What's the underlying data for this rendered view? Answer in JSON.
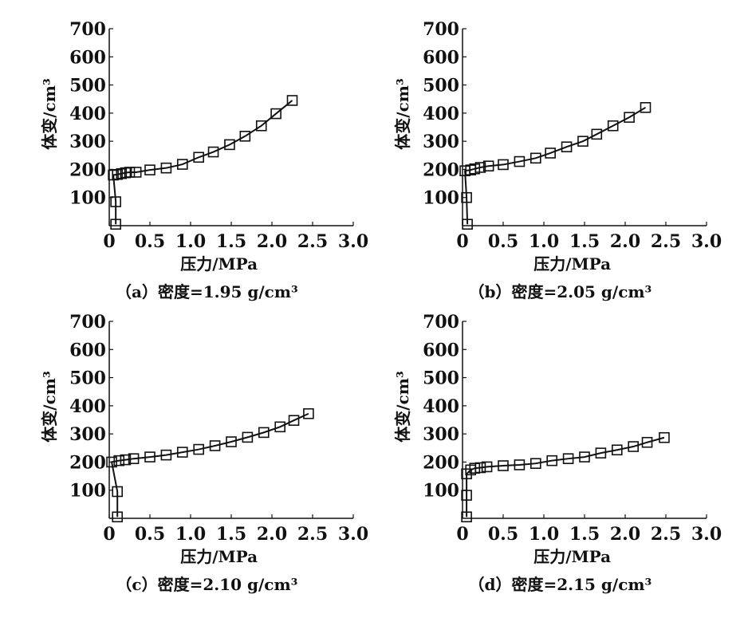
{
  "chart_data": [
    {
      "type": "line",
      "id": "a",
      "caption": "（a）密度=1.95 g/cm³",
      "xlabel": "压力/MPa",
      "ylabel": "体变/cm³",
      "xlim": [
        0,
        3.0
      ],
      "ylim": [
        0,
        700
      ],
      "xticks": [
        "0",
        "0.5",
        "1.0",
        "1.5",
        "2.0",
        "2.5",
        "3.0"
      ],
      "yticks": [
        "100",
        "200",
        "300",
        "400",
        "500",
        "600",
        "700"
      ],
      "x": [
        0.08,
        0.08,
        0.05,
        0.1,
        0.15,
        0.2,
        0.25,
        0.33,
        0.5,
        0.7,
        0.9,
        1.1,
        1.28,
        1.48,
        1.67,
        1.87,
        2.05,
        2.25
      ],
      "y": [
        5,
        85,
        180,
        182,
        185,
        188,
        190,
        190,
        198,
        205,
        218,
        243,
        262,
        288,
        318,
        355,
        398,
        445
      ]
    },
    {
      "type": "line",
      "id": "b",
      "caption": "（b）密度=2.05 g/cm³",
      "xlabel": "压力/MPa",
      "ylabel": "体变/cm³",
      "xlim": [
        0,
        3.0
      ],
      "ylim": [
        0,
        700
      ],
      "xticks": [
        "0",
        "0.5",
        "1.0",
        "1.5",
        "2.0",
        "2.5",
        "3.0"
      ],
      "yticks": [
        "100",
        "200",
        "300",
        "400",
        "500",
        "600",
        "700"
      ],
      "x": [
        0.06,
        0.05,
        0.03,
        0.1,
        0.15,
        0.22,
        0.32,
        0.5,
        0.7,
        0.9,
        1.08,
        1.28,
        1.48,
        1.65,
        1.85,
        2.05,
        2.25
      ],
      "y": [
        5,
        100,
        195,
        198,
        202,
        207,
        212,
        217,
        228,
        240,
        258,
        280,
        300,
        325,
        355,
        385,
        420
      ]
    },
    {
      "type": "line",
      "id": "c",
      "caption": "（c）密度=2.10 g/cm³",
      "xlabel": "压力/MPa",
      "ylabel": "体变/cm³",
      "xlim": [
        0,
        3.0
      ],
      "ylim": [
        0,
        700
      ],
      "xticks": [
        "0",
        "0.5",
        "1.0",
        "1.5",
        "2.0",
        "2.5",
        "3.0"
      ],
      "yticks": [
        "100",
        "200",
        "300",
        "400",
        "500",
        "600",
        "700"
      ],
      "x": [
        0.1,
        0.1,
        0.03,
        0.12,
        0.2,
        0.3,
        0.5,
        0.7,
        0.9,
        1.1,
        1.3,
        1.5,
        1.7,
        1.9,
        2.1,
        2.27,
        2.45
      ],
      "y": [
        5,
        95,
        200,
        205,
        208,
        212,
        218,
        225,
        235,
        245,
        258,
        272,
        288,
        305,
        325,
        348,
        372
      ]
    },
    {
      "type": "line",
      "id": "d",
      "caption": "（d）密度=2.15 g/cm³",
      "xlabel": "压力/MPa",
      "ylabel": "体变/cm³",
      "xlim": [
        0,
        3.0
      ],
      "ylim": [
        0,
        700
      ],
      "xticks": [
        "0",
        "0.5",
        "1.0",
        "1.5",
        "2.0",
        "2.5",
        "3.0"
      ],
      "yticks": [
        "100",
        "200",
        "300",
        "400",
        "500",
        "600",
        "700"
      ],
      "x": [
        0.05,
        0.05,
        0.05,
        0.1,
        0.15,
        0.22,
        0.3,
        0.5,
        0.7,
        0.9,
        1.1,
        1.3,
        1.5,
        1.7,
        1.9,
        2.1,
        2.27,
        2.48
      ],
      "y": [
        5,
        82,
        158,
        172,
        178,
        180,
        183,
        187,
        190,
        195,
        205,
        212,
        218,
        232,
        243,
        255,
        270,
        287
      ]
    }
  ]
}
